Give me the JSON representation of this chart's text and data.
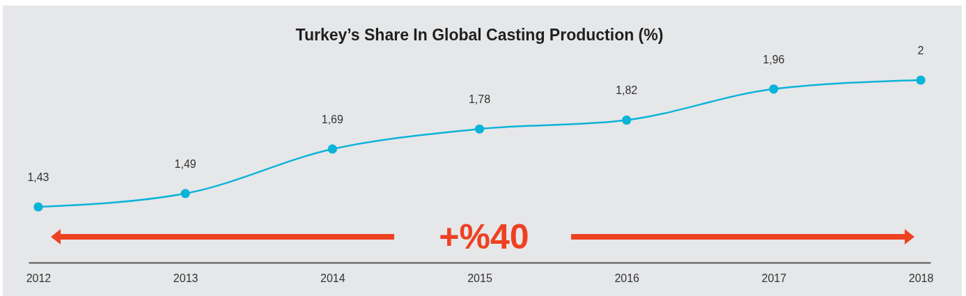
{
  "chart_data": {
    "type": "line",
    "title": "Turkey’s Share In Global Casting Production (%)",
    "categories": [
      "2012",
      "2013",
      "2014",
      "2015",
      "2016",
      "2017",
      "2018"
    ],
    "values": [
      1.43,
      1.49,
      1.69,
      1.78,
      1.82,
      1.96,
      2
    ],
    "value_labels": [
      "1,43",
      "1,49",
      "1,69",
      "1,78",
      "1,82",
      "1,96",
      "2"
    ],
    "color": "#0ab4d8",
    "tick_labels": "x",
    "marker": "circle",
    "line_style": "solid",
    "annotations": [
      "+%40"
    ]
  }
}
